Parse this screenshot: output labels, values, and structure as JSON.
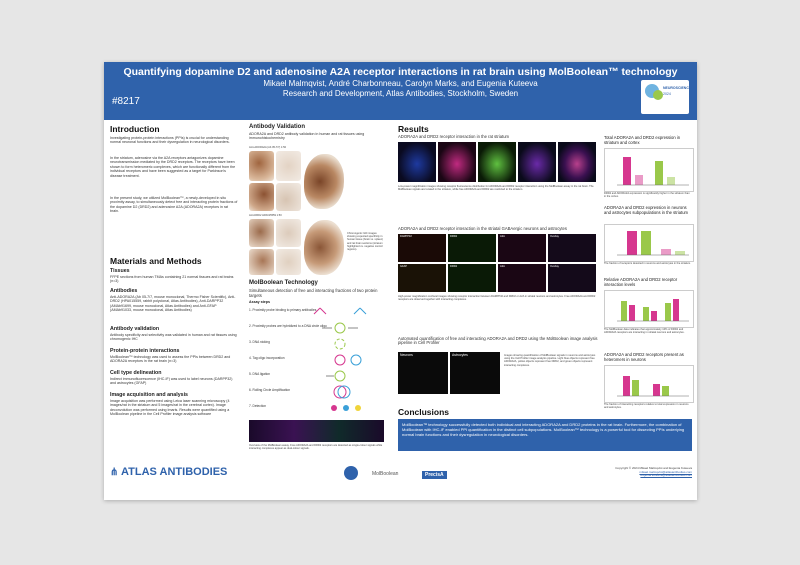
{
  "banner": {
    "title": "Quantifying dopamine D2 and adenosine A2A receptor interactions in rat brain using MolBoolean™ technology",
    "authors": "Mikael Malmqvist, André Charbonneau, Carolyn Marks, and Eugenia Kuteeva",
    "affiliation": "Research and Development, Atlas Antibodies, Stockholm, Sweden",
    "poster_number": "#8217",
    "conference_logo_line1": "NEUROSCIENCE",
    "conference_logo_line2": "2024"
  },
  "introduction": {
    "heading": "Introduction",
    "p1": "Investigating protein-protein interactions (PPIs) is crucial for understanding normal neuronal functions and their dysregulation in neurological disorders.",
    "p2": "In the striatum, adenosine via the A2A receptors antagonizes dopamine neurotransmission mediated by the DRD2 receptors. The receptors have been shown to form heteromeric complexes, which are functionally different from the individual receptors and have been suggested as a target for Parkinson's disease treatment.",
    "p3": "In the present study, we utilized MolBoolean™, a newly-developed in situ proximity assay, to simultaneously detect free and interacting protein fractions of the dopamine D2 (DRD2) and adenosine A2A (ADORA2A) receptors in rat brain."
  },
  "methods": {
    "heading": "Materials and Methods",
    "tissues_h": "Tissues",
    "tissues": "FFPE sections from human TMAs containing 21 normal tissues and rat brains (n=3)",
    "antibodies_h": "Antibodies",
    "antibodies": "Anti-ADORA2A (Ab 05-7/7, mouse monoclonal, Thermo Fisher Scientific), Anti-DRD2 (HPA015559, rabbit polyclonal, Atlas Antibodies), Anti-DARPP32 (AMAb91699, mouse monoclonal, Atlas Antibodies) and Anti-GFAP (AMAb91033, mouse monoclonal, Atlas Antibodies)",
    "validation_h": "Antibody validation",
    "validation": "Antibody specificity and selectivity was validated in human and rat tissues using chromogenic IHC",
    "ppi_h": "Protein-protein interactions",
    "ppi": "MolBoolean™ technology was used to assess the PPIs between DRD2 and ADORA2A receptors in the rat brain (n=3)",
    "celltype_h": "Cell type delineation",
    "celltype": "Indirect immunofluorescence (IHC-IF) was used to label neurons (DARPP32) and astrocytes (GFAP)",
    "imaging_h": "Image acquisition and analysis",
    "imaging": "Image acquisition was performed using Leica laser scanning microscopy (4 images/rat in the striatum and 5 images/rat in the cerebral cortex). Image deconvolution was performed using Imaris. Results were quantified using a MolBoolean pipeline in the Cell Profiler image analysis software"
  },
  "validation_section": {
    "heading": "Antibody Validation",
    "subheading": "ADORA2A and DRD2 antibody validation in human and rat tissues using immunohistochemistry",
    "label_a": "Anti-ADORA2A (Ab 05-7/7) 1:50",
    "label_b": "Anti-DRD2 HPA015559 1:50",
    "caption": "Chromogenic IHC images showing expected specificity in human tissue (brain vs. spleen) and rat brain sections (striatum highlighted vs. negative control regions)."
  },
  "molboolean": {
    "heading": "MolBoolean Technology",
    "subheading": "Simultaneous detection of free and interacting fractions of two protein targets",
    "assay_steps_h": "Assay steps",
    "steps": [
      "1. Proximity probe binding to primary antibodies",
      "2. Proximity probes are hybridized to a DNA circle oligo",
      "3. DNA nicking",
      "4. Tag oligo incorporation",
      "5. DNA ligation",
      "6. Rolling Circle Amplification",
      "7. Detection"
    ],
    "caption": "Overview of the MolBoolean assay. Free ADORA2A and DRD2 receptors are detected as single-colour signals while interacting complexes appear as dual-colour signals."
  },
  "results": {
    "heading": "Results",
    "sub1": "ADORA2A and DRD2 receptor interaction in the rat striatum",
    "panels1": [
      "DAPI",
      "ADORA2A",
      "DRD2",
      "Merge",
      "Overlay"
    ],
    "caption1": "Low-power magnification images showing receptor fluorescence distribution for ADORA2A and DRD2 receptor interaction using the MolBoolean assay in the rat brain. The MolBoolean signals are located in the striatum, while free ADORA2A and DRD2 are restricted to the striatum.",
    "sub2": "ADORA2A and DRD2 receptor interaction in the striatal GABAergic neurons and astrocytes",
    "panels2a": [
      "DARPP32",
      "DRD2",
      "A2A",
      "Overlay"
    ],
    "panels2b": [
      "GFAP",
      "DRD2",
      "A2A",
      "Overlay"
    ],
    "caption2": "High-power magnification confocal images showing receptor interaction between DARPP32 and DRD2 or A2A in striatal neurons and astrocytes. Free ADORA2A and DRD2 receptors are observed together with interacting complexes.",
    "sub3": "Automated quantification of free and interacting ADORA2A and DRD2 using the MolBoolean image analysis pipeline in Cell Profiler",
    "panel3a": "Neurons",
    "panel3b": "Astrocytes",
    "caption3": "Images showing quantification of MolBoolean signals in neurons and astrocytes using the Cell Profiler image analysis pipeline. Light blue objects represent free ADORA2A, yellow objects represent free DRD2, and green objects represent interacting complexes."
  },
  "right_column": {
    "h1": "Total ADORA2A and DRD2 expression in striatum and cortex",
    "cap1": "DRD2 and ADORA2A expression is significantly higher in the striatum than in the cortex.",
    "h2": "ADORA2A and DRD2 expression in neurons and astrocytes subpopulations in the striatum",
    "cap2": "The fraction of receptors detected in neurons and astrocytes in the striatum.",
    "h3": "Relative ADORA2A and DRD2 receptor interaction levels",
    "cap3": "The MolBoolean data indicates that approximately 10% of DRD2 and ADORA2A receptors are interacting in striatal neurons and astrocytes.",
    "h4": "ADORA2A and DRD2 receptors present as heteromers in neurons",
    "cap4": "The fraction of interacting receptors relative to total expression in neurons and astrocytes."
  },
  "conclusions": {
    "heading": "Conclusions",
    "text": "MolBoolean™ technology successfully detected both individual and interacting ADORA2A and DRD2 proteins in the rat brain. Furthermore, the combination of MolBoolean with IHC-IF enabled PPI quantification in the distinct cell subpopulations. MolBoolean™ technology is a powerful tool for dissecting PPIs underlying normal brain functions and their dysregulation in neurological disorders."
  },
  "footer": {
    "company": "ATLAS ANTIBODIES",
    "logo2": "MolBoolean",
    "logo3": "PrecisA",
    "copyright": "Copyright © 2024 Mikael Malmqvist and Eugenia Kuteeva",
    "email1": "mikael.malmqvist@atlasantibodies.com",
    "email2": "eugenia.kuteeva@atlasantibodies.com"
  },
  "colors": {
    "brand_blue": "#2f62ab",
    "bar_green": "#9ac84a",
    "bar_magenta": "#d6378f"
  }
}
